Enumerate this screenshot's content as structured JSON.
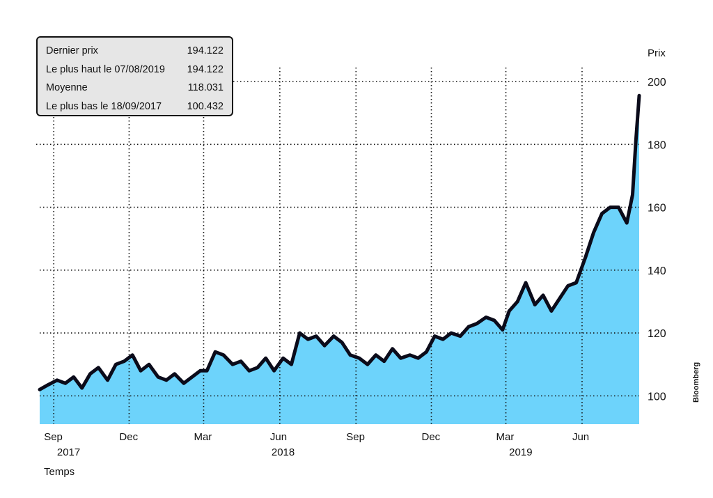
{
  "stats": {
    "last_label": "Dernier prix",
    "last_value": "194.122",
    "high_label": "Le plus haut le 07/08/2019",
    "high_value": "194.122",
    "avg_label": "Moyenne",
    "avg_value": "118.031",
    "low_label": "Le plus bas le 18/09/2017",
    "low_value": "100.432"
  },
  "source": "Bloomberg",
  "colors": {
    "area_fill": "#6dd3fb",
    "line": "#0b0b1a",
    "grid": "#111111"
  },
  "chart_data": {
    "type": "area",
    "title": "",
    "ylabel": "Prix",
    "xlabel": "Temps",
    "ylim": [
      91,
      200
    ],
    "yticks": [
      100,
      120,
      140,
      160,
      180,
      200
    ],
    "xlim": [
      "2017-08-15",
      "2019-08-09"
    ],
    "xticks": [
      {
        "date": "2017-09-01",
        "label": "Sep"
      },
      {
        "date": "2017-12-01",
        "label": "Dec"
      },
      {
        "date": "2018-03-01",
        "label": "Mar"
      },
      {
        "date": "2018-06-01",
        "label": "Jun"
      },
      {
        "date": "2018-09-01",
        "label": "Sep"
      },
      {
        "date": "2018-12-01",
        "label": "Dec"
      },
      {
        "date": "2019-03-01",
        "label": "Mar"
      },
      {
        "date": "2019-06-01",
        "label": "Jun"
      }
    ],
    "year_labels": [
      {
        "date": "2017-09-15",
        "label": "2017"
      },
      {
        "date": "2018-06-01",
        "label": "2018"
      },
      {
        "date": "2019-03-15",
        "label": "2019"
      }
    ],
    "grid": "dotted",
    "series": [
      {
        "x": [
          "2017-08-15",
          "2017-08-25",
          "2017-09-05",
          "2017-09-15",
          "2017-09-25",
          "2017-10-05",
          "2017-10-15",
          "2017-10-25",
          "2017-11-05",
          "2017-11-15",
          "2017-11-25",
          "2017-12-05",
          "2017-12-15",
          "2017-12-25",
          "2018-01-05",
          "2018-01-15",
          "2018-01-25",
          "2018-02-05",
          "2018-02-15",
          "2018-02-25",
          "2018-03-05",
          "2018-03-15",
          "2018-03-25",
          "2018-04-05",
          "2018-04-15",
          "2018-04-25",
          "2018-05-05",
          "2018-05-15",
          "2018-05-25",
          "2018-06-05",
          "2018-06-15",
          "2018-06-25",
          "2018-07-05",
          "2018-07-15",
          "2018-07-25",
          "2018-08-05",
          "2018-08-15",
          "2018-08-25",
          "2018-09-05",
          "2018-09-15",
          "2018-09-25",
          "2018-10-05",
          "2018-10-15",
          "2018-10-25",
          "2018-11-05",
          "2018-11-15",
          "2018-11-25",
          "2018-12-05",
          "2018-12-15",
          "2018-12-25",
          "2019-01-05",
          "2019-01-15",
          "2019-01-25",
          "2019-02-05",
          "2019-02-15",
          "2019-02-25",
          "2019-03-05",
          "2019-03-15",
          "2019-03-25",
          "2019-04-05",
          "2019-04-15",
          "2019-04-25",
          "2019-05-05",
          "2019-05-15",
          "2019-05-25",
          "2019-06-05",
          "2019-06-15",
          "2019-06-25",
          "2019-07-05",
          "2019-07-15",
          "2019-07-25",
          "2019-08-01",
          "2019-08-05",
          "2019-08-09"
        ],
        "values": [
          102,
          103.5,
          105,
          104,
          106,
          102.5,
          107,
          109,
          105,
          110,
          111,
          113,
          108,
          110,
          106,
          105,
          107,
          104,
          106,
          108,
          108,
          114,
          113,
          110,
          111,
          108,
          109,
          112,
          108,
          112,
          110,
          120,
          118,
          119,
          116,
          119,
          117,
          113,
          112,
          110,
          113,
          111,
          115,
          112,
          113,
          112,
          114,
          119,
          118,
          120,
          119,
          122,
          123,
          125,
          124,
          121,
          127,
          130,
          136,
          129,
          132,
          127,
          131,
          135,
          136,
          144,
          152,
          158,
          160,
          160,
          155,
          164,
          181,
          195.5
        ]
      }
    ]
  }
}
